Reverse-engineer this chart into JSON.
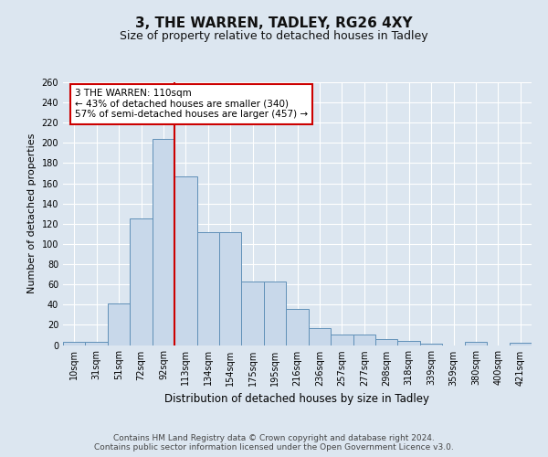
{
  "title": "3, THE WARREN, TADLEY, RG26 4XY",
  "subtitle": "Size of property relative to detached houses in Tadley",
  "xlabel": "Distribution of detached houses by size in Tadley",
  "ylabel": "Number of detached properties",
  "bin_labels": [
    "10sqm",
    "31sqm",
    "51sqm",
    "72sqm",
    "92sqm",
    "113sqm",
    "134sqm",
    "154sqm",
    "175sqm",
    "195sqm",
    "216sqm",
    "236sqm",
    "257sqm",
    "277sqm",
    "298sqm",
    "318sqm",
    "339sqm",
    "359sqm",
    "380sqm",
    "400sqm",
    "421sqm"
  ],
  "heights": [
    3,
    3,
    41,
    125,
    204,
    167,
    112,
    112,
    63,
    63,
    36,
    17,
    10,
    10,
    6,
    4,
    1,
    0,
    3,
    0,
    2
  ],
  "annotation_text": "3 THE WARREN: 110sqm\n← 43% of detached houses are smaller (340)\n57% of semi-detached houses are larger (457) →",
  "bar_color": "#c8d8ea",
  "bar_edge_color": "#6090b8",
  "red_line_color": "#cc0000",
  "fig_bg_color": "#dce6f0",
  "plot_bg_color": "#dce6f0",
  "grid_color": "#ffffff",
  "annotation_box_color": "#ffffff",
  "annotation_border_color": "#cc0000",
  "footer_text": "Contains HM Land Registry data © Crown copyright and database right 2024.\nContains public sector information licensed under the Open Government Licence v3.0.",
  "ylim": [
    0,
    260
  ],
  "yticks": [
    0,
    20,
    40,
    60,
    80,
    100,
    120,
    140,
    160,
    180,
    200,
    220,
    240,
    260
  ],
  "title_fontsize": 11,
  "subtitle_fontsize": 9,
  "ylabel_fontsize": 8,
  "xlabel_fontsize": 8.5,
  "tick_fontsize": 7,
  "footer_fontsize": 6.5
}
